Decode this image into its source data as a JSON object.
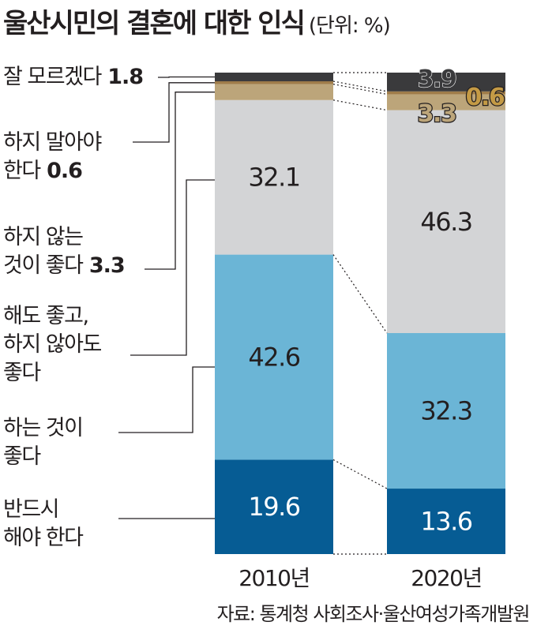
{
  "title": "울산시민의 결혼에 대한 인식",
  "unit": "(단위: %)",
  "source": "자료: 통계청 사회조사·울산여성가족개발원",
  "chart_data": {
    "type": "bar",
    "stacked": true,
    "y_unit": "%",
    "categories": [
      "2010년",
      "2020년"
    ],
    "series": [
      {
        "name": "반드시 해야 한다",
        "values": [
          19.6,
          13.6
        ],
        "color": "#065c94"
      },
      {
        "name": "하는 것이 좋다",
        "values": [
          42.6,
          32.3
        ],
        "color": "#6bb5d6"
      },
      {
        "name": "해도 좋고, 하지 않아도 좋다",
        "values": [
          32.1,
          46.3
        ],
        "color": "#d3d4d6"
      },
      {
        "name": "하지 않는 것이 좋다",
        "values": [
          3.3,
          3.3
        ],
        "color": "#bca57a"
      },
      {
        "name": "하지 말아야 한다",
        "values": [
          0.6,
          0.6
        ],
        "color": "#a07d4a"
      },
      {
        "name": "잘 모르겠다",
        "values": [
          1.8,
          3.9
        ],
        "color": "#3a3a3c"
      }
    ],
    "legend": [
      {
        "lines": [
          "잘 모르겠다"
        ],
        "value": "1.8"
      },
      {
        "lines": [
          "하지 말아야",
          "한다"
        ],
        "value": "0.6"
      },
      {
        "lines": [
          "하지 않는",
          "것이 좋다"
        ],
        "value": "3.3"
      },
      {
        "lines": [
          "해도 좋고,",
          "하지 않아도",
          "좋다"
        ],
        "value": ""
      },
      {
        "lines": [
          "하는 것이",
          "좋다"
        ],
        "value": ""
      },
      {
        "lines": [
          "반드시",
          "해야 한다"
        ],
        "value": ""
      }
    ],
    "bar_labels": [
      [
        "19.6",
        "42.6",
        "32.1",
        "",
        "",
        ""
      ],
      [
        "13.6",
        "32.3",
        "46.3",
        "3.3",
        "0.6",
        "3.9"
      ]
    ]
  }
}
